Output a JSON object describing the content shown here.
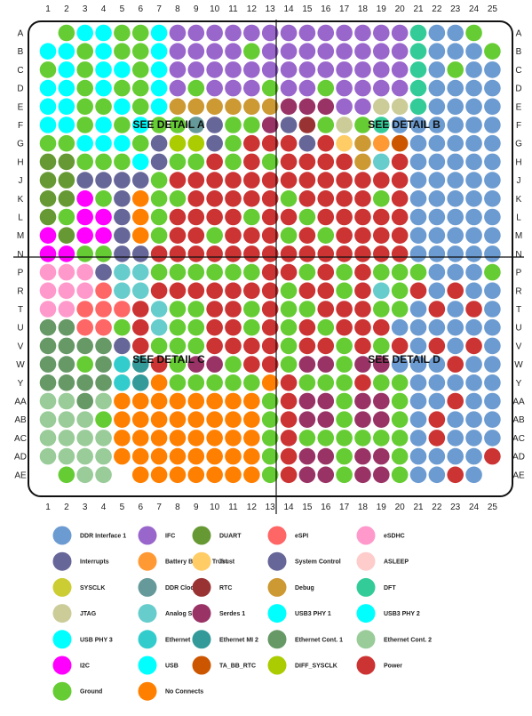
{
  "columns": [
    "1",
    "2",
    "3",
    "4",
    "5",
    "6",
    "7",
    "8",
    "9",
    "10",
    "11",
    "12",
    "13",
    "14",
    "15",
    "16",
    "17",
    "18",
    "19",
    "20",
    "21",
    "22",
    "23",
    "24",
    "25"
  ],
  "rows": [
    "A",
    "B",
    "C",
    "D",
    "E",
    "F",
    "G",
    "H",
    "J",
    "K",
    "L",
    "M",
    "N",
    "P",
    "R",
    "T",
    "U",
    "V",
    "W",
    "Y",
    "AA",
    "AB",
    "AC",
    "AD",
    "AE"
  ],
  "detail_labels": [
    {
      "text": "SEE DETAIL A",
      "quadrant": "top-left"
    },
    {
      "text": "SEE DETAIL B",
      "quadrant": "top-right"
    },
    {
      "text": "SEE DETAIL C",
      "quadrant": "bottom-left"
    },
    {
      "text": "SEE DETAIL D",
      "quadrant": "bottom-right"
    }
  ],
  "legend": [
    {
      "key": "D",
      "label": "DDR Interface 1",
      "color": "#6b9bd1"
    },
    {
      "key": "F",
      "label": "IFC",
      "color": "#9966cc"
    },
    {
      "key": "O",
      "label": "DUART",
      "color": "#669933"
    },
    {
      "key": "e",
      "label": "eSPI",
      "color": "#ff6666"
    },
    {
      "key": "s",
      "label": "eSDHC",
      "color": "#ff99cc"
    },
    {
      "key": "I",
      "label": "Interrupts",
      "color": "#666699"
    },
    {
      "key": "b",
      "label": "Battery Backed Trust",
      "color": "#ff9933"
    },
    {
      "key": "t",
      "label": "Trust",
      "color": "#ffcc66"
    },
    {
      "key": "S",
      "label": "System Control",
      "color": "#666699"
    },
    {
      "key": "a",
      "label": "ASLEEP",
      "color": "#ffcccc"
    },
    {
      "key": "y",
      "label": "SYSCLK",
      "color": "#cccc33"
    },
    {
      "key": "k",
      "label": "DDR Clocking",
      "color": "#669999"
    },
    {
      "key": "r",
      "label": "RTC",
      "color": "#993333"
    },
    {
      "key": "d",
      "label": "Debug",
      "color": "#cc9933"
    },
    {
      "key": "f",
      "label": "DFT",
      "color": "#33cc99"
    },
    {
      "key": "j",
      "label": "JTAG",
      "color": "#cccc99"
    },
    {
      "key": "n",
      "label": "Analog Signals",
      "color": "#66cccc"
    },
    {
      "key": "P",
      "label": "Serdes 1",
      "color": "#993366"
    },
    {
      "key": "u",
      "label": "USB3 PHY 1",
      "color": "#00ffff"
    },
    {
      "key": "u2",
      "label": "USB3 PHY 2",
      "color": "#00ffff"
    },
    {
      "key": "u3",
      "label": "USB PHY 3",
      "color": "#00ffff"
    },
    {
      "key": "E",
      "label": "Ethernet MI 1",
      "color": "#33cccc"
    },
    {
      "key": "M",
      "label": "Ethernet MI 2",
      "color": "#339999"
    },
    {
      "key": "x",
      "label": "Ethernet Cont. 1",
      "color": "#669966"
    },
    {
      "key": "z",
      "label": "Ethernet Cont. 2",
      "color": "#99cc99"
    },
    {
      "key": "i",
      "label": "I2C",
      "color": "#ff00ff"
    },
    {
      "key": "U",
      "label": "USB",
      "color": "#00ffff"
    },
    {
      "key": "T",
      "label": "TA_BB_RTC",
      "color": "#cc5500"
    },
    {
      "key": "c",
      "label": "DIFF_SYSCLK",
      "color": "#aacc00"
    },
    {
      "key": "R",
      "label": "Power",
      "color": "#cc3333"
    },
    {
      "key": "G",
      "label": "Ground",
      "color": "#66cc33"
    },
    {
      "key": "N",
      "label": "No Connects",
      "color": "#ff8000"
    }
  ],
  "ball_map": [
    " GUUGGUFFFFFFFFFFFFFfDDG ",
    "UUGUGGUFFFFGFFFFFFFFfDDDG",
    "GUGUUGUFFFFFFFFFFFFFfDGDD",
    "UUGUGGUFGFFFGFFGFFFFfDDDD",
    "UUGGUGUddddddPPPFFjjfDDDD",
    "UUGUGUGGkSGGPSrGjGfDDDDDD",
    "GGUUUGSccSGRRRSRtdbTDDDDD",
    "OOGGGUSGGRGRGRRRRdnRDDDDD",
    "OOSSSSGRRRRRRRRRRRRRDDDDD",
    "OOiGSNGGRRRRRGRRRRGRDDDDD",
    "OGiiSNGRRRRGRRGRRRRRDDDDD",
    "iOiiSNGRRGRRRGRGRRRRDDDDD",
    "iiGGSSRRRRRRRRRRRRRRDDDDD",
    "sssSnnGGGGGGRRGRGRGGGDDDG",
    "sssennRRRRRRRGRRGRnGRDRDD",
    "sseeeRnGGRRGRGGRRRGGDRDRD",
    "xxeeGRnGGRRGRGRGRRRDDDDDD",
    "xxxxSRGGGRRRRGRRGRGRDRDRD",
    "xxGxEMRGPPGRRGPPGPPDDDRDD",
    "xxxxEMNGGGGGNRGGGRGGDDDDD",
    "zzxzNNNNNNNNGRPPGPPGDDRDD",
    "zzzGNNNNNNNNGRPPGPPGDRDDD",
    "zzzzNNNNNNNNGRGGGGGGDRDDD",
    "zzzzNNNNNNNNGRPPGPPGDDDDR",
    " Gzz NNNNNNNGRPPGPPGDDRD "
  ]
}
